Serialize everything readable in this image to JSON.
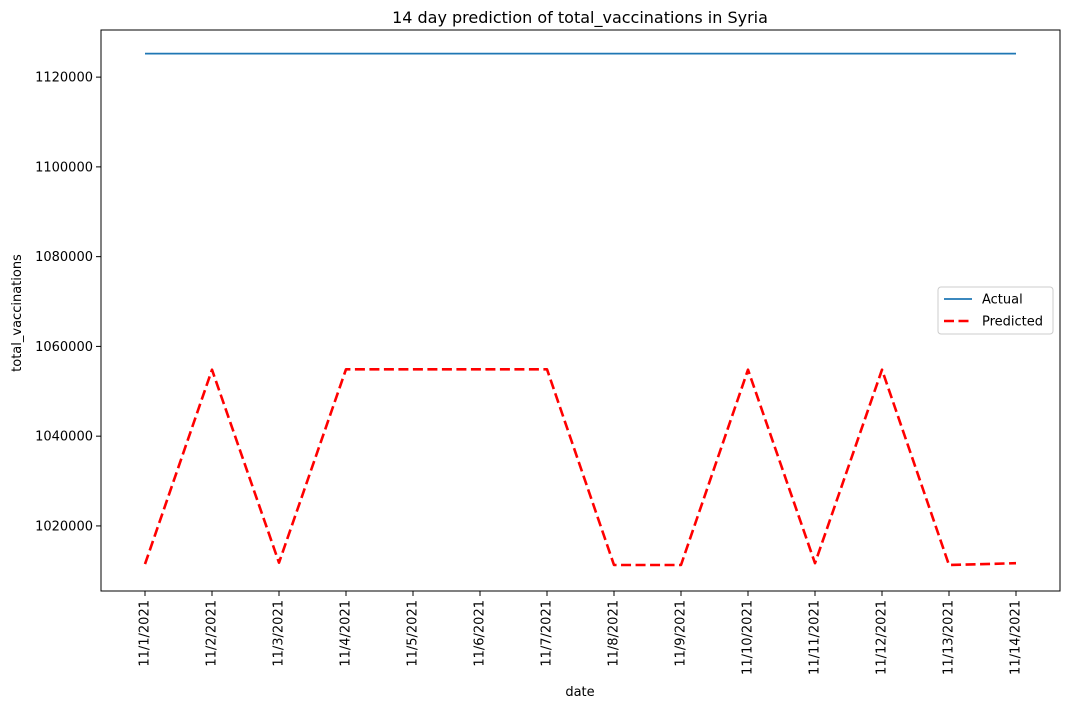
{
  "chart_data": {
    "type": "line",
    "title": "14 day prediction of total_vaccinations in Syria",
    "xlabel": "date",
    "ylabel": "total_vaccinations",
    "x": [
      "11/1/2021",
      "11/2/2021",
      "11/3/2021",
      "11/4/2021",
      "11/5/2021",
      "11/6/2021",
      "11/7/2021",
      "11/8/2021",
      "11/9/2021",
      "11/10/2021",
      "11/11/2021",
      "11/12/2021",
      "11/13/2021",
      "11/14/2021"
    ],
    "ylim": [
      1005500,
      1130500
    ],
    "yticks": [
      1020000,
      1040000,
      1060000,
      1080000,
      1100000,
      1120000
    ],
    "grid": false,
    "legend_position": "center-right",
    "series": [
      {
        "name": "Actual",
        "color": "#1f77b4",
        "style": "solid",
        "values": [
          1125245,
          1125245,
          1125245,
          1125245,
          1125245,
          1125245,
          1125245,
          1125245,
          1125245,
          1125245,
          1125245,
          1125245,
          1125245,
          1125245
        ]
      },
      {
        "name": "Predicted",
        "color": "#ff0000",
        "style": "dashed",
        "values": [
          1011500,
          1054800,
          1011800,
          1054900,
          1054900,
          1054900,
          1054900,
          1011300,
          1011300,
          1054800,
          1011700,
          1054800,
          1011300,
          1011700
        ]
      }
    ]
  }
}
